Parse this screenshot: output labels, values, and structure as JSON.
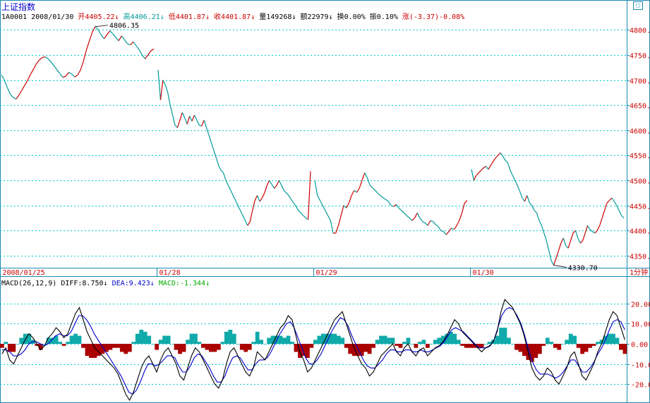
{
  "header": {
    "title": "上证指数",
    "code_date": "1A0001 2008/01/30",
    "open": "开4405.22",
    "high": "高4406.21",
    "low": "低4401.87",
    "close": "收4401.87",
    "volume": "量149268",
    "amount": "额22979",
    "turnover": "换0.00%",
    "amplitude": "振0.10%",
    "change": "涨(-3.37)-0.08%"
  },
  "macd_header": {
    "name": "MACD(26,12,9)",
    "diff": "DIFF:8.750",
    "dea": "DEA:9.423",
    "macd": "MACD:-1.344"
  },
  "period_label": "1分钟",
  "corner_icon": "window-icon",
  "arrows": {
    "down": "↓",
    "up": "↑"
  },
  "colors": {
    "up": "#cc0000",
    "down": "#009999",
    "grid": "#00cccc",
    "diff": "#000000",
    "dea": "#0000cc",
    "macd_pos": "#11aaaa",
    "macd_neg": "#aa0000"
  },
  "chart_data": [
    {
      "type": "line",
      "title": "上证指数 1分钟",
      "x_tick_labels": [
        "2008/01/25",
        "01/28",
        "01/29",
        "01/30"
      ],
      "y_tick_labels": [
        "4350.",
        "4400.",
        "4450.",
        "4500.",
        "4550.",
        "4600.",
        "4650.",
        "4700.",
        "4750.",
        "4800."
      ],
      "ylim": [
        4326,
        4820
      ],
      "annotations": [
        {
          "label": "4806.35",
          "value": 4806.35
        },
        {
          "label": "4330.70",
          "value": 4330.7
        }
      ],
      "series": [
        {
          "values": [
            4710,
            4700,
            4685,
            4672,
            4665,
            4662,
            4670,
            4680,
            4690,
            4700,
            4712,
            4722,
            4733,
            4740,
            4745,
            4746,
            4742,
            4735,
            4728,
            4720,
            4712,
            4705,
            4708,
            4715,
            4712,
            4706,
            4710,
            4720,
            4738,
            4760,
            4778,
            4795,
            4806.35,
            4800,
            4790,
            4782,
            4790,
            4798,
            4792,
            4785,
            4778,
            4788,
            4780,
            4772,
            4770,
            4776,
            4768,
            4760,
            4750,
            4742,
            4750,
            4758,
            4762
          ],
          "note": "day 1 (2008/01/25)"
        },
        {
          "values": [
            4720,
            4660,
            4700,
            4690,
            4675,
            4650,
            4630,
            4610,
            4605,
            4620,
            4635,
            4625,
            4612,
            4628,
            4618,
            4630,
            4620,
            4610,
            4608,
            4620,
            4605,
            4590,
            4575,
            4560,
            4545,
            4530,
            4520,
            4515,
            4500,
            4490,
            4480,
            4470,
            4460,
            4450,
            4440,
            4430,
            4420,
            4410,
            4418,
            4440,
            4460,
            4470,
            4458,
            4465,
            4475,
            4490,
            4500,
            4492,
            4484,
            4490,
            4500,
            4490,
            4480,
            4475,
            4470,
            4462,
            4455,
            4448,
            4440,
            4435,
            4430,
            4425,
            4422,
            4518
          ],
          "note": "day 2 (01/28)"
        },
        {
          "values": [
            4500,
            4470,
            4460,
            4450,
            4440,
            4430,
            4420,
            4395,
            4395,
            4410,
            4430,
            4450,
            4445,
            4455,
            4470,
            4480,
            4476,
            4485,
            4500,
            4515,
            4505,
            4490,
            4485,
            4480,
            4474,
            4470,
            4465,
            4462,
            4458,
            4450,
            4448,
            4452,
            4445,
            4440,
            4435,
            4430,
            4425,
            4420,
            4425,
            4435,
            4425,
            4418,
            4415,
            4410,
            4420,
            4418,
            4412,
            4408,
            4400,
            4398,
            4392,
            4398,
            4405,
            4402,
            4410,
            4420,
            4435,
            4455,
            4460
          ],
          "note": "day 3 (01/29)"
        },
        {
          "values": [
            4522,
            4500,
            4510,
            4515,
            4520,
            4525,
            4528,
            4522,
            4530,
            4538,
            4545,
            4550,
            4555,
            4548,
            4540,
            4535,
            4520,
            4510,
            4500,
            4490,
            4478,
            4465,
            4458,
            4470,
            4455,
            4450,
            4440,
            4435,
            4420,
            4410,
            4395,
            4380,
            4360,
            4340,
            4331,
            4345,
            4360,
            4375,
            4385,
            4370,
            4365,
            4380,
            4395,
            4400,
            4385,
            4375,
            4380,
            4395,
            4410,
            4402,
            4398,
            4395,
            4400,
            4410,
            4425,
            4440,
            4455,
            4460,
            4465,
            4458,
            4450,
            4440,
            4430,
            4425
          ],
          "note": "day 4 (01/30)"
        }
      ]
    },
    {
      "type": "line",
      "title": "MACD(26,12,9)",
      "ylim": [
        -28,
        28
      ],
      "y_tick_labels": [
        "20.00",
        "10.00",
        "0.00",
        "-10.00",
        "-20.00"
      ],
      "series": [
        {
          "name": "DIFF",
          "values": [
            -5,
            -2,
            -8,
            -10,
            -6,
            -2,
            2,
            5,
            3,
            0,
            -3,
            -1,
            3,
            5,
            8,
            6,
            3,
            5,
            10,
            15,
            18,
            12,
            6,
            2,
            -2,
            -4,
            -6,
            -8,
            -10,
            -12,
            -15,
            -20,
            -25,
            -28,
            -24,
            -18,
            -12,
            -8,
            -6,
            -10,
            -14,
            -8,
            -4,
            -2,
            -6,
            -10,
            -16,
            -18,
            -12,
            -6,
            -2,
            -4,
            -8,
            -12,
            -16,
            -20,
            -22,
            -18,
            -10,
            -4,
            -2,
            -6,
            -10,
            -14,
            -16,
            -12,
            -4,
            -6,
            -8,
            -4,
            0,
            4,
            8,
            10,
            14,
            12,
            4,
            -4,
            -8,
            -14,
            -12,
            -8,
            -4,
            0,
            4,
            8,
            12,
            14,
            16,
            10,
            4,
            -2,
            -6,
            -10,
            -12,
            -16,
            -14,
            -10,
            -6,
            -4,
            -2,
            0,
            -4,
            -6,
            -2,
            0,
            -4,
            -6,
            -3,
            -2,
            -6,
            -4,
            -2,
            -1,
            1,
            4,
            8,
            12,
            10,
            6,
            4,
            2,
            0,
            -2,
            -4,
            -2,
            -1,
            1,
            6,
            16,
            22,
            20,
            18,
            14,
            10,
            4,
            -4,
            -12,
            -16,
            -18,
            -16,
            -12,
            -14,
            -18,
            -20,
            -16,
            -12,
            -6,
            -4,
            -10,
            -16,
            -18,
            -14,
            -10,
            -4,
            0,
            6,
            12,
            16,
            14,
            8,
            2
          ]
        },
        {
          "name": "DEA",
          "values": [
            -3,
            -3,
            -4,
            -6,
            -6,
            -5,
            -3,
            0,
            1,
            1,
            0,
            -1,
            0,
            2,
            4,
            5,
            4,
            4,
            6,
            10,
            14,
            14,
            12,
            9,
            5,
            2,
            -1,
            -4,
            -7,
            -10,
            -13,
            -16,
            -20,
            -24,
            -25,
            -23,
            -19,
            -14,
            -10,
            -10,
            -11,
            -10,
            -8,
            -6,
            -6,
            -7,
            -11,
            -14,
            -14,
            -11,
            -7,
            -5,
            -6,
            -9,
            -12,
            -16,
            -19,
            -19,
            -16,
            -11,
            -7,
            -6,
            -7,
            -10,
            -13,
            -13,
            -10,
            -8,
            -8,
            -7,
            -4,
            0,
            4,
            7,
            10,
            11,
            8,
            3,
            -2,
            -7,
            -10,
            -10,
            -8,
            -5,
            -1,
            3,
            7,
            10,
            13,
            12,
            9,
            4,
            0,
            -4,
            -8,
            -11,
            -12,
            -12,
            -10,
            -8,
            -5,
            -3,
            -3,
            -4,
            -4,
            -3,
            -3,
            -4,
            -4,
            -3,
            -4,
            -4,
            -3,
            -2,
            -1,
            1,
            4,
            7,
            8,
            7,
            6,
            4,
            2,
            0,
            -2,
            -2,
            -2,
            -1,
            2,
            8,
            14,
            17,
            18,
            17,
            14,
            10,
            4,
            -3,
            -9,
            -13,
            -15,
            -15,
            -15,
            -16,
            -17,
            -16,
            -14,
            -11,
            -8,
            -8,
            -11,
            -14,
            -14,
            -12,
            -9,
            -5,
            -2,
            2,
            7,
            11,
            12,
            11,
            7
          ]
        },
        {
          "name": "MACD",
          "type": "bar",
          "values": [
            -2,
            1,
            -4,
            -4,
            0,
            3,
            5,
            5,
            2,
            -1,
            -3,
            0,
            3,
            3,
            4,
            1,
            -1,
            1,
            4,
            5,
            4,
            -2,
            -6,
            -7,
            -7,
            -6,
            -5,
            -4,
            -3,
            -2,
            -2,
            -4,
            -5,
            -4,
            1,
            5,
            7,
            6,
            4,
            0,
            -3,
            2,
            4,
            4,
            0,
            -3,
            -5,
            -4,
            2,
            5,
            5,
            1,
            -2,
            -3,
            -4,
            -4,
            -3,
            1,
            6,
            7,
            5,
            0,
            -3,
            -4,
            -3,
            1,
            6,
            2,
            0,
            3,
            4,
            4,
            4,
            3,
            4,
            1,
            -4,
            -7,
            -6,
            -7,
            -2,
            2,
            4,
            5,
            5,
            5,
            5,
            4,
            3,
            -2,
            -5,
            -6,
            -6,
            -6,
            -4,
            -5,
            -2,
            2,
            4,
            4,
            3,
            3,
            -1,
            -2,
            1,
            3,
            0,
            -2,
            1,
            2,
            -2,
            0,
            2,
            3,
            4,
            5,
            6,
            5,
            2,
            -1,
            -2,
            -2,
            -2,
            -2,
            -2,
            0,
            1,
            2,
            4,
            8,
            8,
            3,
            0,
            -3,
            -4,
            -6,
            -8,
            -9,
            -7,
            -5,
            -1,
            3,
            1,
            -2,
            -3,
            0,
            2,
            5,
            4,
            -2,
            -5,
            -4,
            -2,
            -1,
            1,
            2,
            4,
            5,
            5,
            3,
            -3,
            -5
          ]
        }
      ]
    }
  ]
}
